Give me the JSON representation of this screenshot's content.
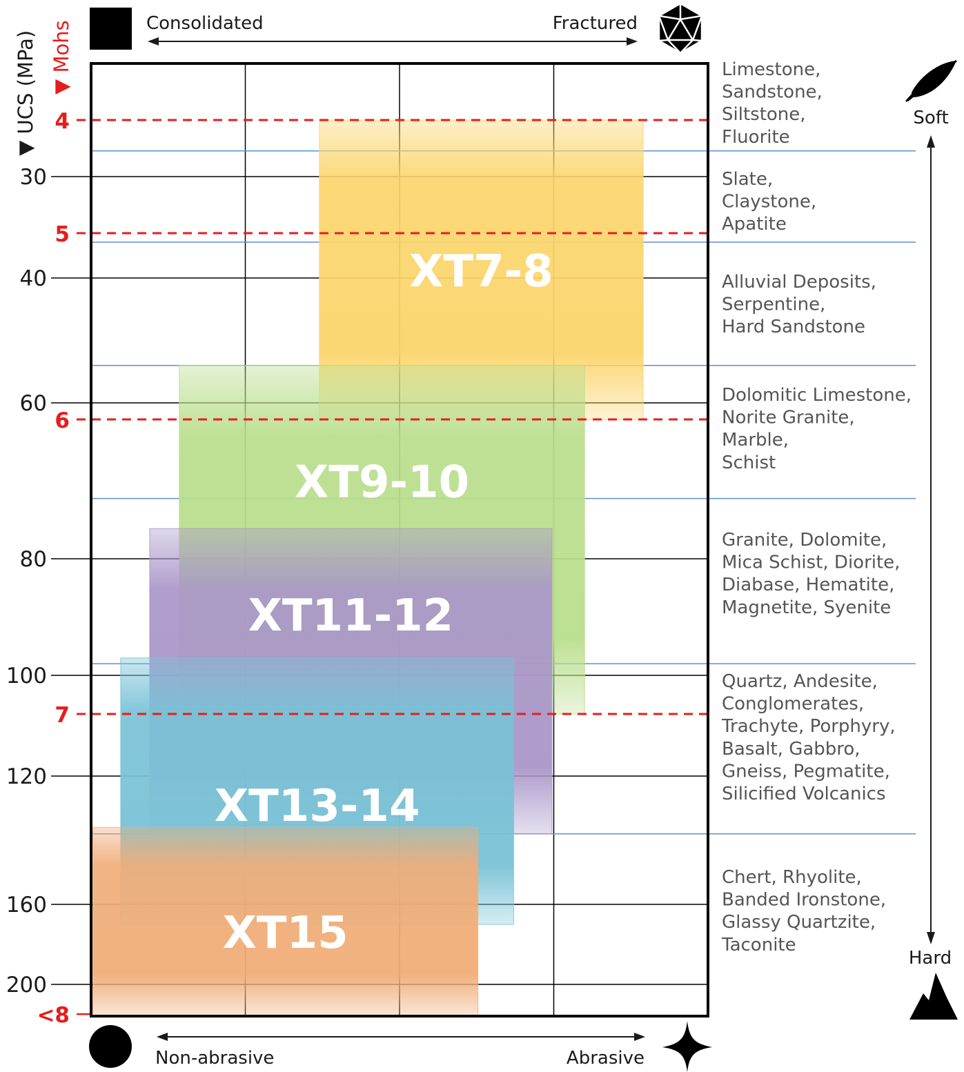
{
  "chart_data": {
    "type": "range-chart",
    "y_axis": {
      "label_ucs": "▼ UCS (MPa)",
      "label_mohs": "▼ Mohs",
      "ucs_ticks": [
        30,
        40,
        60,
        80,
        100,
        120,
        160,
        200
      ],
      "mohs_ticks": [
        {
          "label": "4",
          "ucs": 24.5
        },
        {
          "label": "5",
          "ucs": 35
        },
        {
          "label": "6",
          "ucs": 61.5
        },
        {
          "label": "7",
          "ucs": 108
        },
        {
          "label": "<8",
          "ucs": 215
        }
      ]
    },
    "x_axis_top": {
      "left_label": "Consolidated",
      "right_label": "Fractured",
      "left_icon": "square-icon",
      "right_icon": "icosahedron-icon"
    },
    "x_axis_bottom": {
      "left_label": "Non-abrasive",
      "right_label": "Abrasive",
      "left_icon": "circle-icon",
      "right_icon": "four-point-star-icon"
    },
    "hardness_scale": {
      "top_label": "Soft",
      "bottom_label": "Hard",
      "top_icon": "feather-icon",
      "bottom_icon": "mountain-icon"
    },
    "products": [
      {
        "name": "XT7-8",
        "ucs_min": 24.5,
        "ucs_max": 61.5,
        "x_start": 0.37,
        "x_end": 0.895,
        "color": "#fbd56c"
      },
      {
        "name": "XT9-10",
        "ucs_min": 54,
        "ucs_max": 108,
        "x_start": 0.143,
        "x_end": 0.8,
        "color": "#b9de8c"
      },
      {
        "name": "XT11-12",
        "ucs_min": 76,
        "ucs_max": 138,
        "x_start": 0.095,
        "x_end": 0.747,
        "color": "#a996c8"
      },
      {
        "name": "XT13-14",
        "ucs_min": 97,
        "ucs_max": 170,
        "x_start": 0.048,
        "x_end": 0.685,
        "color": "#79c2d6"
      },
      {
        "name": "XT15",
        "ucs_min": 136,
        "ucs_max": 216,
        "x_start": 0.003,
        "x_end": 0.627,
        "color": "#f0ad78"
      }
    ],
    "rock_groups": [
      {
        "lines": [
          "Limestone,",
          "Sandstone,",
          "Siltstone,",
          "Fluorite"
        ],
        "ucs_lower": 27.5
      },
      {
        "lines": [
          "Slate,",
          "Claystone,",
          "Apatite"
        ],
        "ucs_lower": 36
      },
      {
        "lines": [
          "Alluvial Deposits,",
          "Serpentine,",
          "Hard Sandstone"
        ],
        "ucs_lower": 54
      },
      {
        "lines": [
          "Dolomitic Limestone,",
          "Norite Granite,",
          "Marble,",
          "Schist"
        ],
        "ucs_lower": 72
      },
      {
        "lines": [
          "Granite, Dolomite,",
          "Mica Schist, Diorite,",
          "Diabase, Hematite,",
          "Magnetite, Syenite"
        ],
        "ucs_lower": 98
      },
      {
        "lines": [
          "Quartz, Andesite,",
          "Conglomerates,",
          "Trachyte, Porphyry,",
          "Basalt, Gabbro,",
          "Gneiss, Pegmatite,",
          "Silicified Volcanics"
        ],
        "ucs_lower": 138
      },
      {
        "lines": [
          "Chert, Rhyolite,",
          "Banded Ironstone,",
          "Glassy Quartzite,",
          "Taconite"
        ],
        "ucs_lower": null
      }
    ]
  }
}
